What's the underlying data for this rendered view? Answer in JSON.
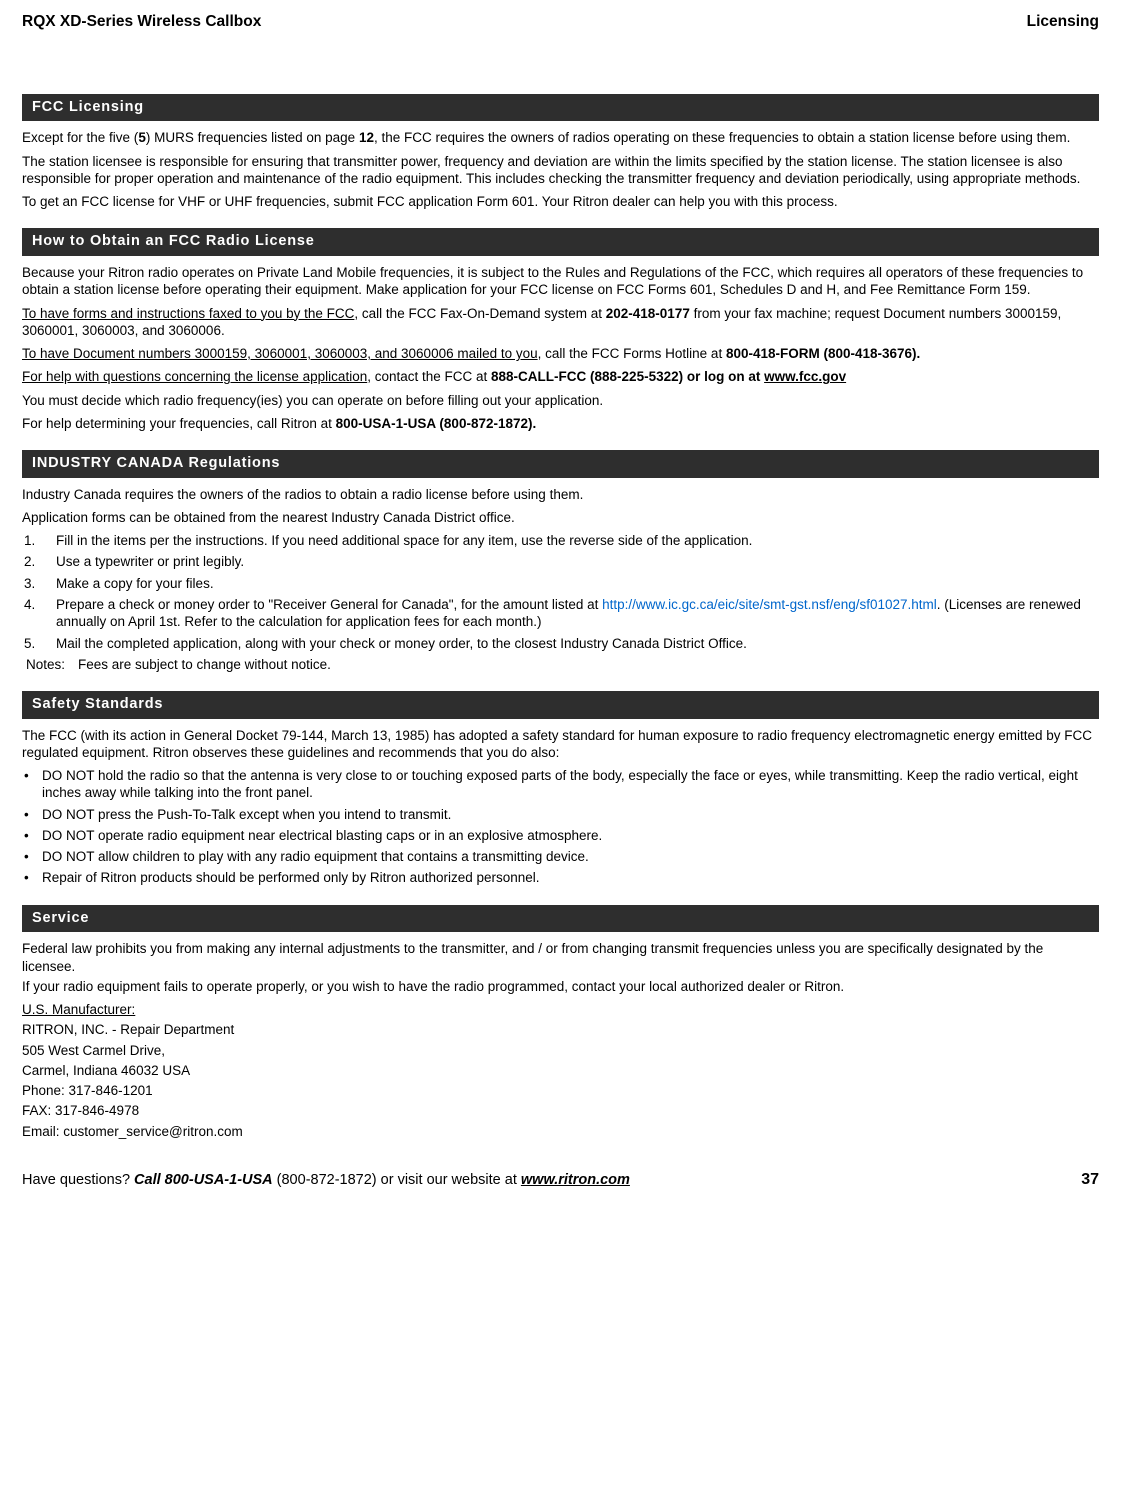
{
  "header": {
    "left": "RQX XD-Series Wireless Callbox",
    "right": "Licensing"
  },
  "sections": {
    "fcc_licensing": {
      "title": "FCC Licensing",
      "p1a": "Except for the five (",
      "p1b_bold": "5",
      "p1c": ") MURS frequencies listed on page ",
      "p1d_bold": "12",
      "p1e": ", the FCC requires the owners of radios operating on these frequencies to obtain a station license before using them.",
      "p2": "The station licensee is responsible for ensuring that transmitter power, frequency and deviation are within the limits specified by the station license. The station licensee is also responsible for proper operation and maintenance of the radio equipment. This includes checking the transmitter frequency and deviation periodically, using appropriate methods.",
      "p3": "To get an FCC license for VHF or UHF frequencies, submit FCC application Form 601. Your Ritron dealer can help you with this process."
    },
    "how_obtain": {
      "title": "How to Obtain an FCC Radio License",
      "p1": "Because your Ritron radio operates on Private Land Mobile frequencies, it is subject to the Rules and Regulations of the FCC, which requires all operators of these frequencies to obtain a station license before operating their equipment. Make application for your FCC license on FCC Forms 601, Schedules D and H, and Fee Remittance Form 159.",
      "p2a_u": "To have forms and instructions faxed to you by the FCC",
      "p2b": ", call the FCC Fax-On-Demand system at ",
      "p2c_bold": "202-418-0177",
      "p2d": " from your fax machine; request Document numbers 3000159, 3060001, 3060003, and 3060006.",
      "p3a_u": "To have Document numbers 3000159, 3060001, 3060003, and 3060006 mailed to you",
      "p3b": ", call the FCC Forms Hotline at ",
      "p3c_bold": "800-418-FORM (800-418-3676).",
      "p4a_u": "For help with questions concerning the license application",
      "p4b": ", contact the FCC at ",
      "p4c_bold": "888-CALL-FCC (888-225-5322) or log on at ",
      "p4d_bold_u": "www.fcc.gov",
      "p5": "You must decide which radio frequency(ies) you can operate on before filling out your application.",
      "p6a": "For help determining your frequencies, call Ritron at ",
      "p6b_bold": "800-USA-1-USA (800-872-1872)."
    },
    "industry_canada": {
      "title": "INDUSTRY CANADA Regulations",
      "p1": "Industry Canada requires the owners of the radios to obtain a radio license before using them.",
      "p2": "Application forms can be obtained from the nearest Industry Canada District office.",
      "items": {
        "n1": "1.",
        "t1": "Fill in the items per the instructions.  If you need additional space for any item, use the reverse side of the application.",
        "n2": "2.",
        "t2": "Use a typewriter or print legibly.",
        "n3": "3.",
        "t3": "Make a copy for your files.",
        "n4": "4.",
        "t4a": "Prepare a check or money order to \"Receiver General for Canada\", for the amount listed at ",
        "t4b_link": "http://www.ic.gc.ca/eic/site/smt-gst.nsf/eng/sf01027.html",
        "t4c": ". (Licenses are renewed annually on April 1st. Refer to the calculation for application fees for each month.)",
        "n5": "5.",
        "t5": "Mail the completed application, along with your check or money order, to the closest Industry Canada District Office."
      },
      "notes_label": "Notes:",
      "notes_text": "Fees are subject to change without notice."
    },
    "safety": {
      "title": "Safety Standards",
      "p1": "The FCC (with its action in General Docket 79-144, March 13, 1985) has adopted a safety standard for human exposure to radio frequency electromagnetic energy emitted by FCC regulated equipment.  Ritron observes these guidelines and recommends that you do also:",
      "b1": "DO NOT hold the radio so that the antenna is very close to or touching exposed parts of the body, especially the face or eyes, while transmitting.  Keep the radio vertical, eight inches away while talking into the front panel.",
      "b2": "DO NOT press the Push-To-Talk except when you intend to transmit.",
      "b3": "DO NOT operate radio equipment near electrical blasting caps or in an explosive atmosphere.",
      "b4": "DO NOT allow children to play with any radio equipment that contains a transmitting device.",
      "b5": "Repair of Ritron products should be performed only by Ritron authorized personnel."
    },
    "service": {
      "title": "Service",
      "p1": "Federal law prohibits you from making any internal adjustments to the transmitter, and / or from changing transmit frequencies unless you are specifically designated by the licensee.",
      "p2": "If your radio equipment fails to operate properly, or you wish to have the radio programmed, contact your local authorized dealer or Ritron.",
      "mfr_u": "U.S. Manufacturer:",
      "l1": "RITRON, INC. - Repair Department",
      "l2": "505 West Carmel Drive,",
      "l3": "Carmel, Indiana 46032 USA",
      "l4": "Phone: 317-846-1201",
      "l5": "FAX: 317-846-4978",
      "l6": "Email:  customer_service@ritron.com"
    }
  },
  "footer": {
    "q": "Have questions?  ",
    "call": "Call 800-USA-1-USA",
    "mid": " (800-872-1872) or visit our website at ",
    "site": "www.ritron.com",
    "page": "37"
  }
}
